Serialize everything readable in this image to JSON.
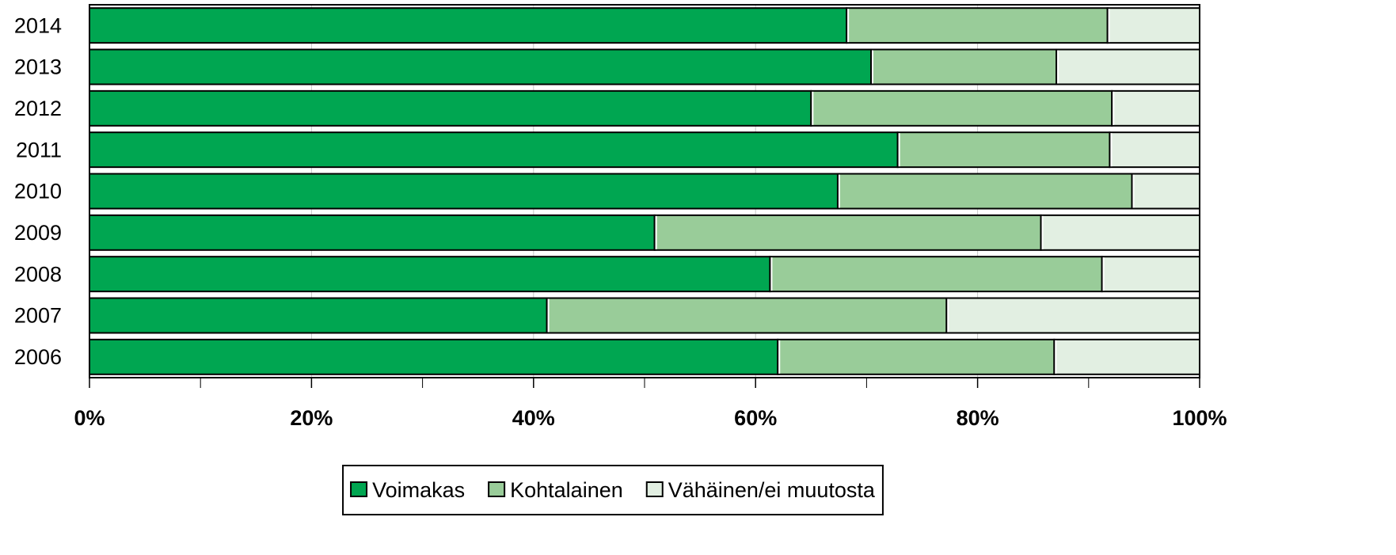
{
  "chart_data": {
    "type": "stacked_bar_horizontal",
    "categories": [
      "2014",
      "2013",
      "2012",
      "2011",
      "2010",
      "2009",
      "2008",
      "2007",
      "2006"
    ],
    "series": [
      {
        "name": "Voimakas",
        "color": "#00a651",
        "values": [
          68.2,
          70.4,
          65.0,
          72.8,
          67.4,
          50.9,
          61.3,
          41.2,
          62.0
        ]
      },
      {
        "name": "Kohtalainen",
        "color": "#99cc99",
        "values": [
          23.5,
          16.7,
          27.1,
          19.1,
          26.5,
          34.8,
          29.9,
          36.0,
          24.9
        ]
      },
      {
        "name": "Vähäinen/ei muutosta",
        "color": "#e2efe2",
        "values": [
          8.3,
          12.9,
          7.9,
          8.1,
          6.1,
          14.3,
          8.8,
          22.8,
          13.1
        ]
      }
    ],
    "xlim": [
      0,
      100
    ],
    "xticks": [
      {
        "value": 0,
        "label": "0%"
      },
      {
        "value": 20,
        "label": "20%"
      },
      {
        "value": 40,
        "label": "40%"
      },
      {
        "value": 60,
        "label": "60%"
      },
      {
        "value": 80,
        "label": "80%"
      },
      {
        "value": 100,
        "label": "100%"
      }
    ],
    "xminorticks": [
      10,
      30,
      50,
      70,
      90
    ],
    "grid": true,
    "legend": "bottom"
  }
}
